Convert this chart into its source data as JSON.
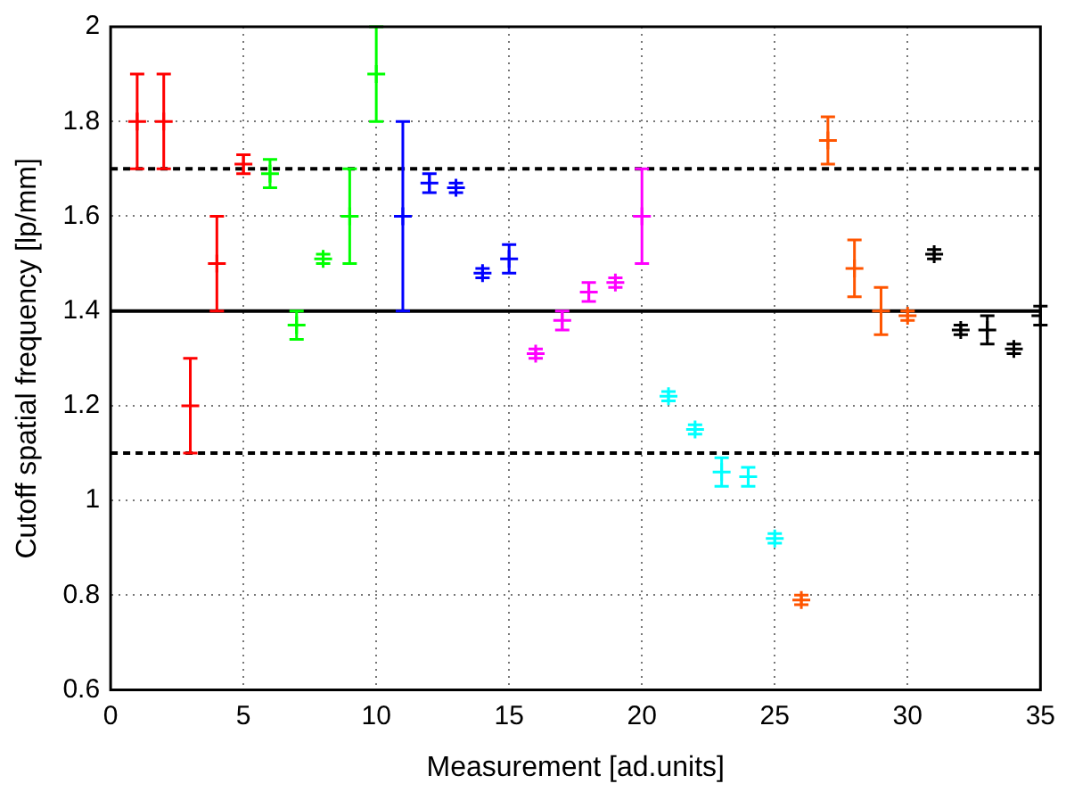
{
  "chart_data": {
    "type": "scatter",
    "xlabel": "Measurement [ad.units]",
    "ylabel": "Cutoff spatial frequency [lp/mm]",
    "xlim": [
      0,
      35
    ],
    "xticks": [
      0,
      5,
      10,
      15,
      20,
      25,
      30,
      35
    ],
    "ylim": [
      0.6,
      2
    ],
    "yticks": [
      0.6,
      0.8,
      1,
      1.2,
      1.4,
      1.6,
      1.8,
      2
    ],
    "grid": true,
    "legend": false,
    "marker": "cross",
    "series": [
      {
        "color": "#ff0000",
        "x": [
          1,
          2,
          3,
          4,
          5
        ],
        "values": [
          1.8,
          1.8,
          1.2,
          1.5,
          1.71
        ],
        "errors": [
          0.1,
          0.1,
          0.1,
          0.1,
          0.02
        ]
      },
      {
        "color": "#00ff00",
        "x": [
          6,
          7,
          8,
          9,
          10
        ],
        "values": [
          1.69,
          1.37,
          1.51,
          1.6,
          1.9
        ],
        "errors": [
          0.03,
          0.03,
          0.01,
          0.1,
          0.1
        ]
      },
      {
        "color": "#0000ff",
        "x": [
          11,
          12,
          13,
          14,
          15
        ],
        "values": [
          1.6,
          1.67,
          1.66,
          1.48,
          1.51
        ],
        "errors": [
          0.2,
          0.02,
          0.01,
          0.01,
          0.03
        ]
      },
      {
        "color": "#ff00ff",
        "x": [
          16,
          17,
          18,
          19,
          20
        ],
        "values": [
          1.31,
          1.38,
          1.44,
          1.46,
          1.6
        ],
        "errors": [
          0.01,
          0.02,
          0.02,
          0.01,
          0.1
        ]
      },
      {
        "color": "#00ffff",
        "x": [
          21,
          22,
          23,
          24,
          25
        ],
        "values": [
          1.22,
          1.15,
          1.06,
          1.05,
          0.92
        ],
        "errors": [
          0.01,
          0.01,
          0.03,
          0.02,
          0.01
        ]
      },
      {
        "color": "#ff5500",
        "x": [
          26,
          27,
          28,
          29,
          30
        ],
        "values": [
          0.79,
          1.76,
          1.49,
          1.4,
          1.39
        ],
        "errors": [
          0.01,
          0.05,
          0.06,
          0.05,
          0.01
        ]
      },
      {
        "color": "#000000",
        "x": [
          31,
          32,
          33,
          34,
          35
        ],
        "values": [
          1.52,
          1.36,
          1.36,
          1.32,
          1.39
        ],
        "errors": [
          0.01,
          0.01,
          0.03,
          0.01,
          0.02
        ]
      }
    ],
    "ref_lines": [
      {
        "axis": "y",
        "value": 1.4,
        "line_style": "solid",
        "color": "#000000"
      },
      {
        "axis": "y",
        "value": 1.7,
        "line_style": "dashed",
        "color": "#000000"
      },
      {
        "axis": "y",
        "value": 1.1,
        "line_style": "dashed",
        "color": "#000000"
      }
    ]
  }
}
